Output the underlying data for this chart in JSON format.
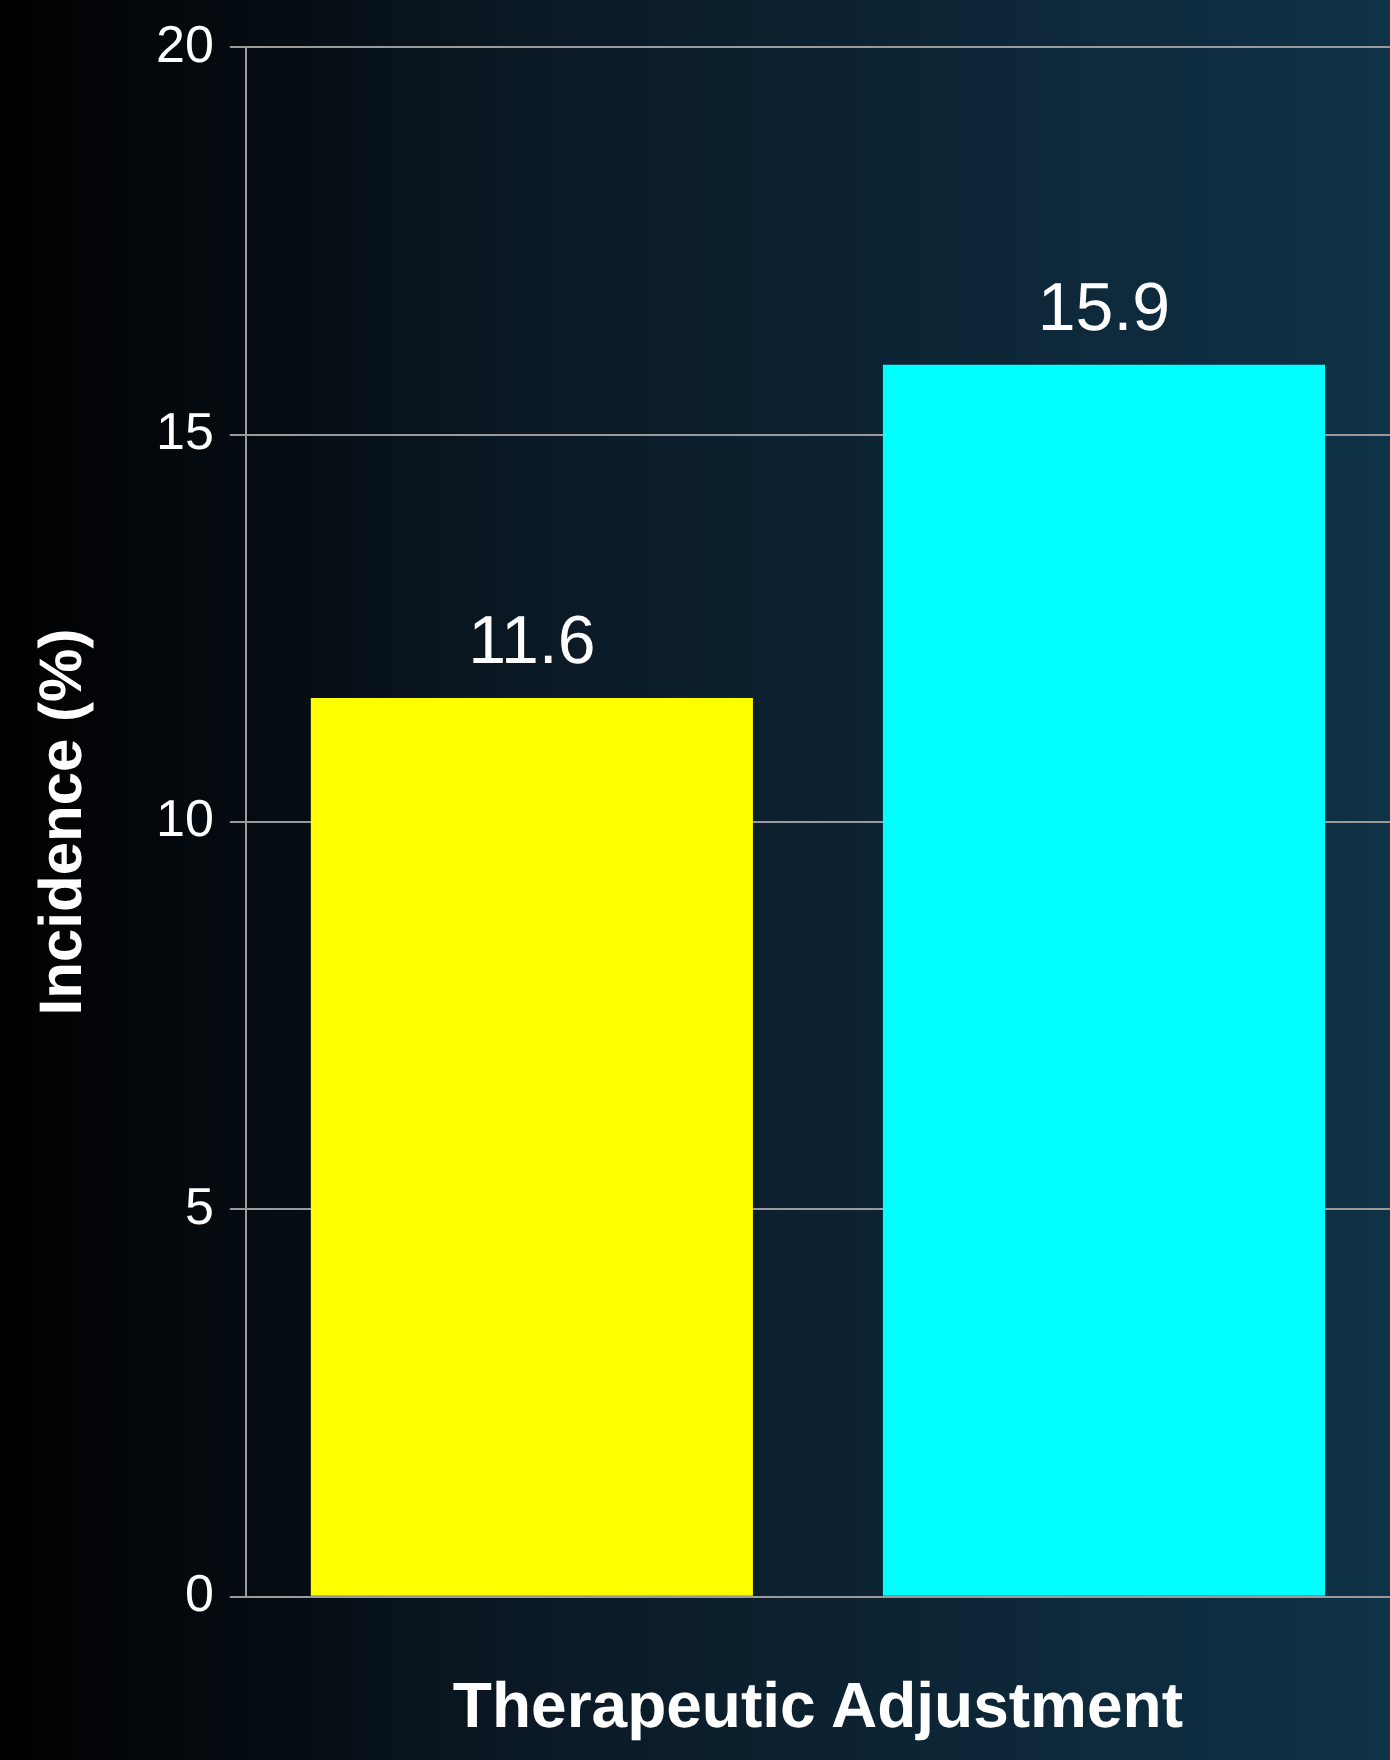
{
  "chart_data": {
    "type": "bar",
    "xlabel": "Therapeutic Adjustment",
    "ylabel": "Incidence (%)",
    "categories": [
      null,
      null
    ],
    "values": [
      11.6,
      15.9
    ],
    "colors": [
      "#ffff00",
      "#00ffff"
    ],
    "ylim": [
      0,
      20
    ],
    "yticks": [
      0,
      5,
      10,
      15,
      20
    ],
    "grid": "y",
    "data_labels": true,
    "legend": false
  }
}
